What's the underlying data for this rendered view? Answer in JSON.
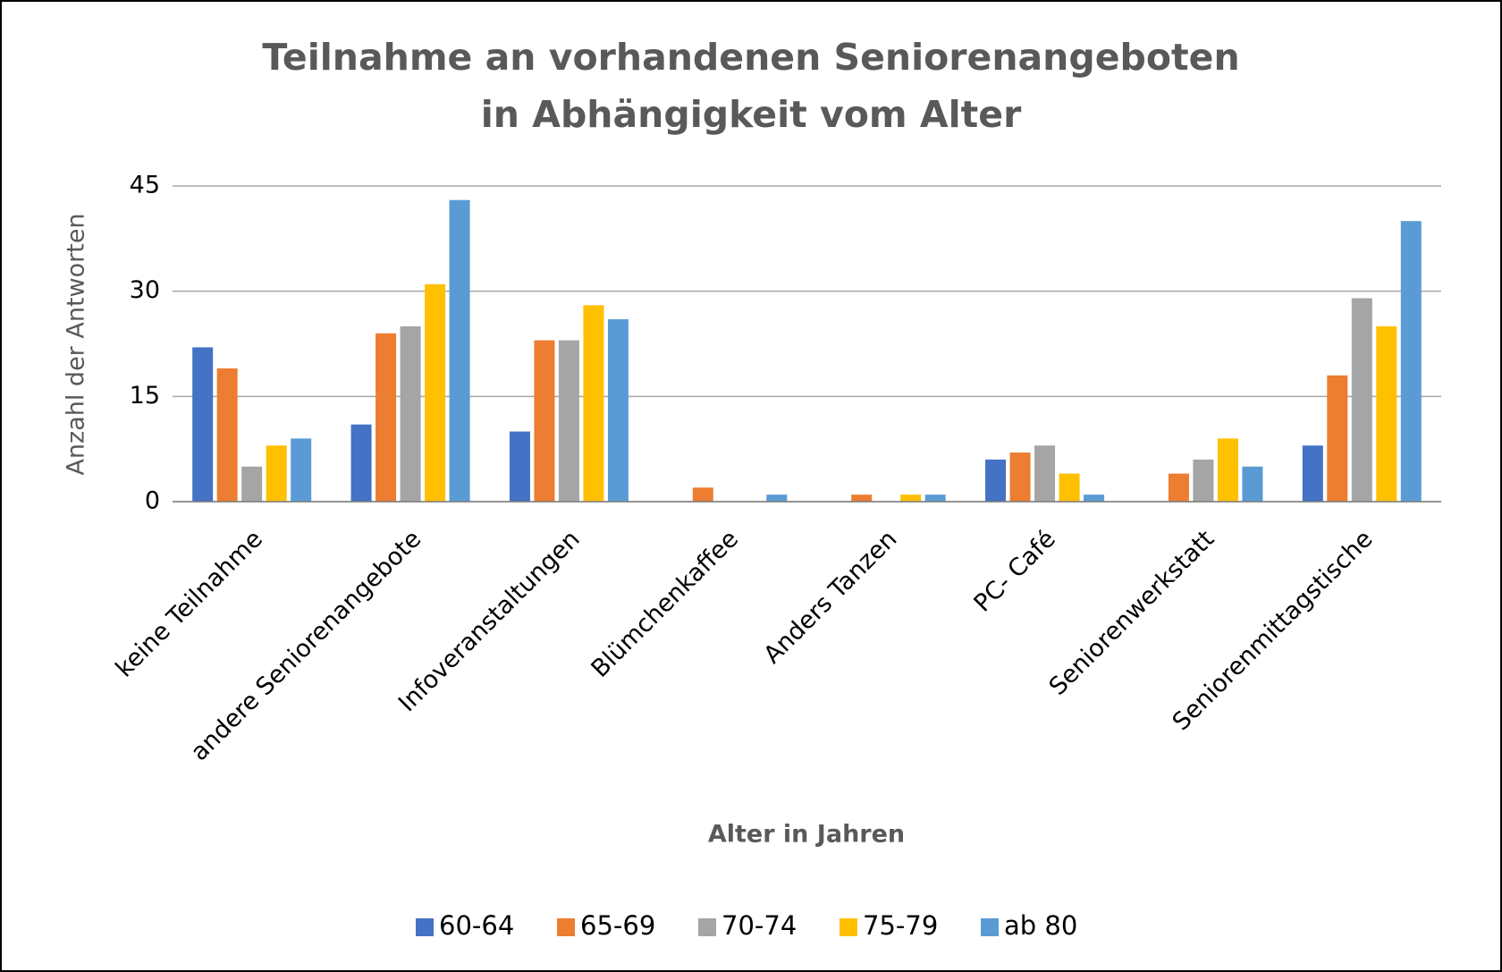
{
  "chart_data": {
    "type": "bar",
    "title": [
      "Teilnahme an vorhandenen Seniorenangeboten",
      "in Abhängigkeit vom Alter"
    ],
    "x_label": "Alter in Jahren",
    "y_label": "Anzahl der Antworten",
    "categories": [
      "keine Teilnahme",
      "andere Seniorenangebote",
      "Infoveranstaltungen",
      "Blümchenkaffee",
      "Anders Tanzen",
      "PC- Café",
      "Seniorenwerkstatt",
      "Seniorenmittagstische"
    ],
    "series": [
      {
        "name": "60-64",
        "color": "#4472c4",
        "values": [
          22,
          11,
          10,
          0,
          0,
          6,
          0,
          8
        ]
      },
      {
        "name": "65-69",
        "color": "#ed7d31",
        "values": [
          19,
          24,
          23,
          2,
          1,
          7,
          4,
          18
        ]
      },
      {
        "name": "70-74",
        "color": "#a5a5a5",
        "values": [
          5,
          25,
          23,
          0,
          0,
          8,
          6,
          29
        ]
      },
      {
        "name": "75-79",
        "color": "#ffc000",
        "values": [
          8,
          31,
          28,
          0,
          1,
          4,
          9,
          25
        ]
      },
      {
        "name": "ab 80",
        "color": "#5b9bd5",
        "values": [
          9,
          43,
          26,
          1,
          1,
          1,
          5,
          40
        ]
      }
    ],
    "ylim": [
      0,
      45
    ],
    "yticks": [
      0,
      15,
      30,
      45
    ],
    "grid": true,
    "legend": "bottom"
  }
}
